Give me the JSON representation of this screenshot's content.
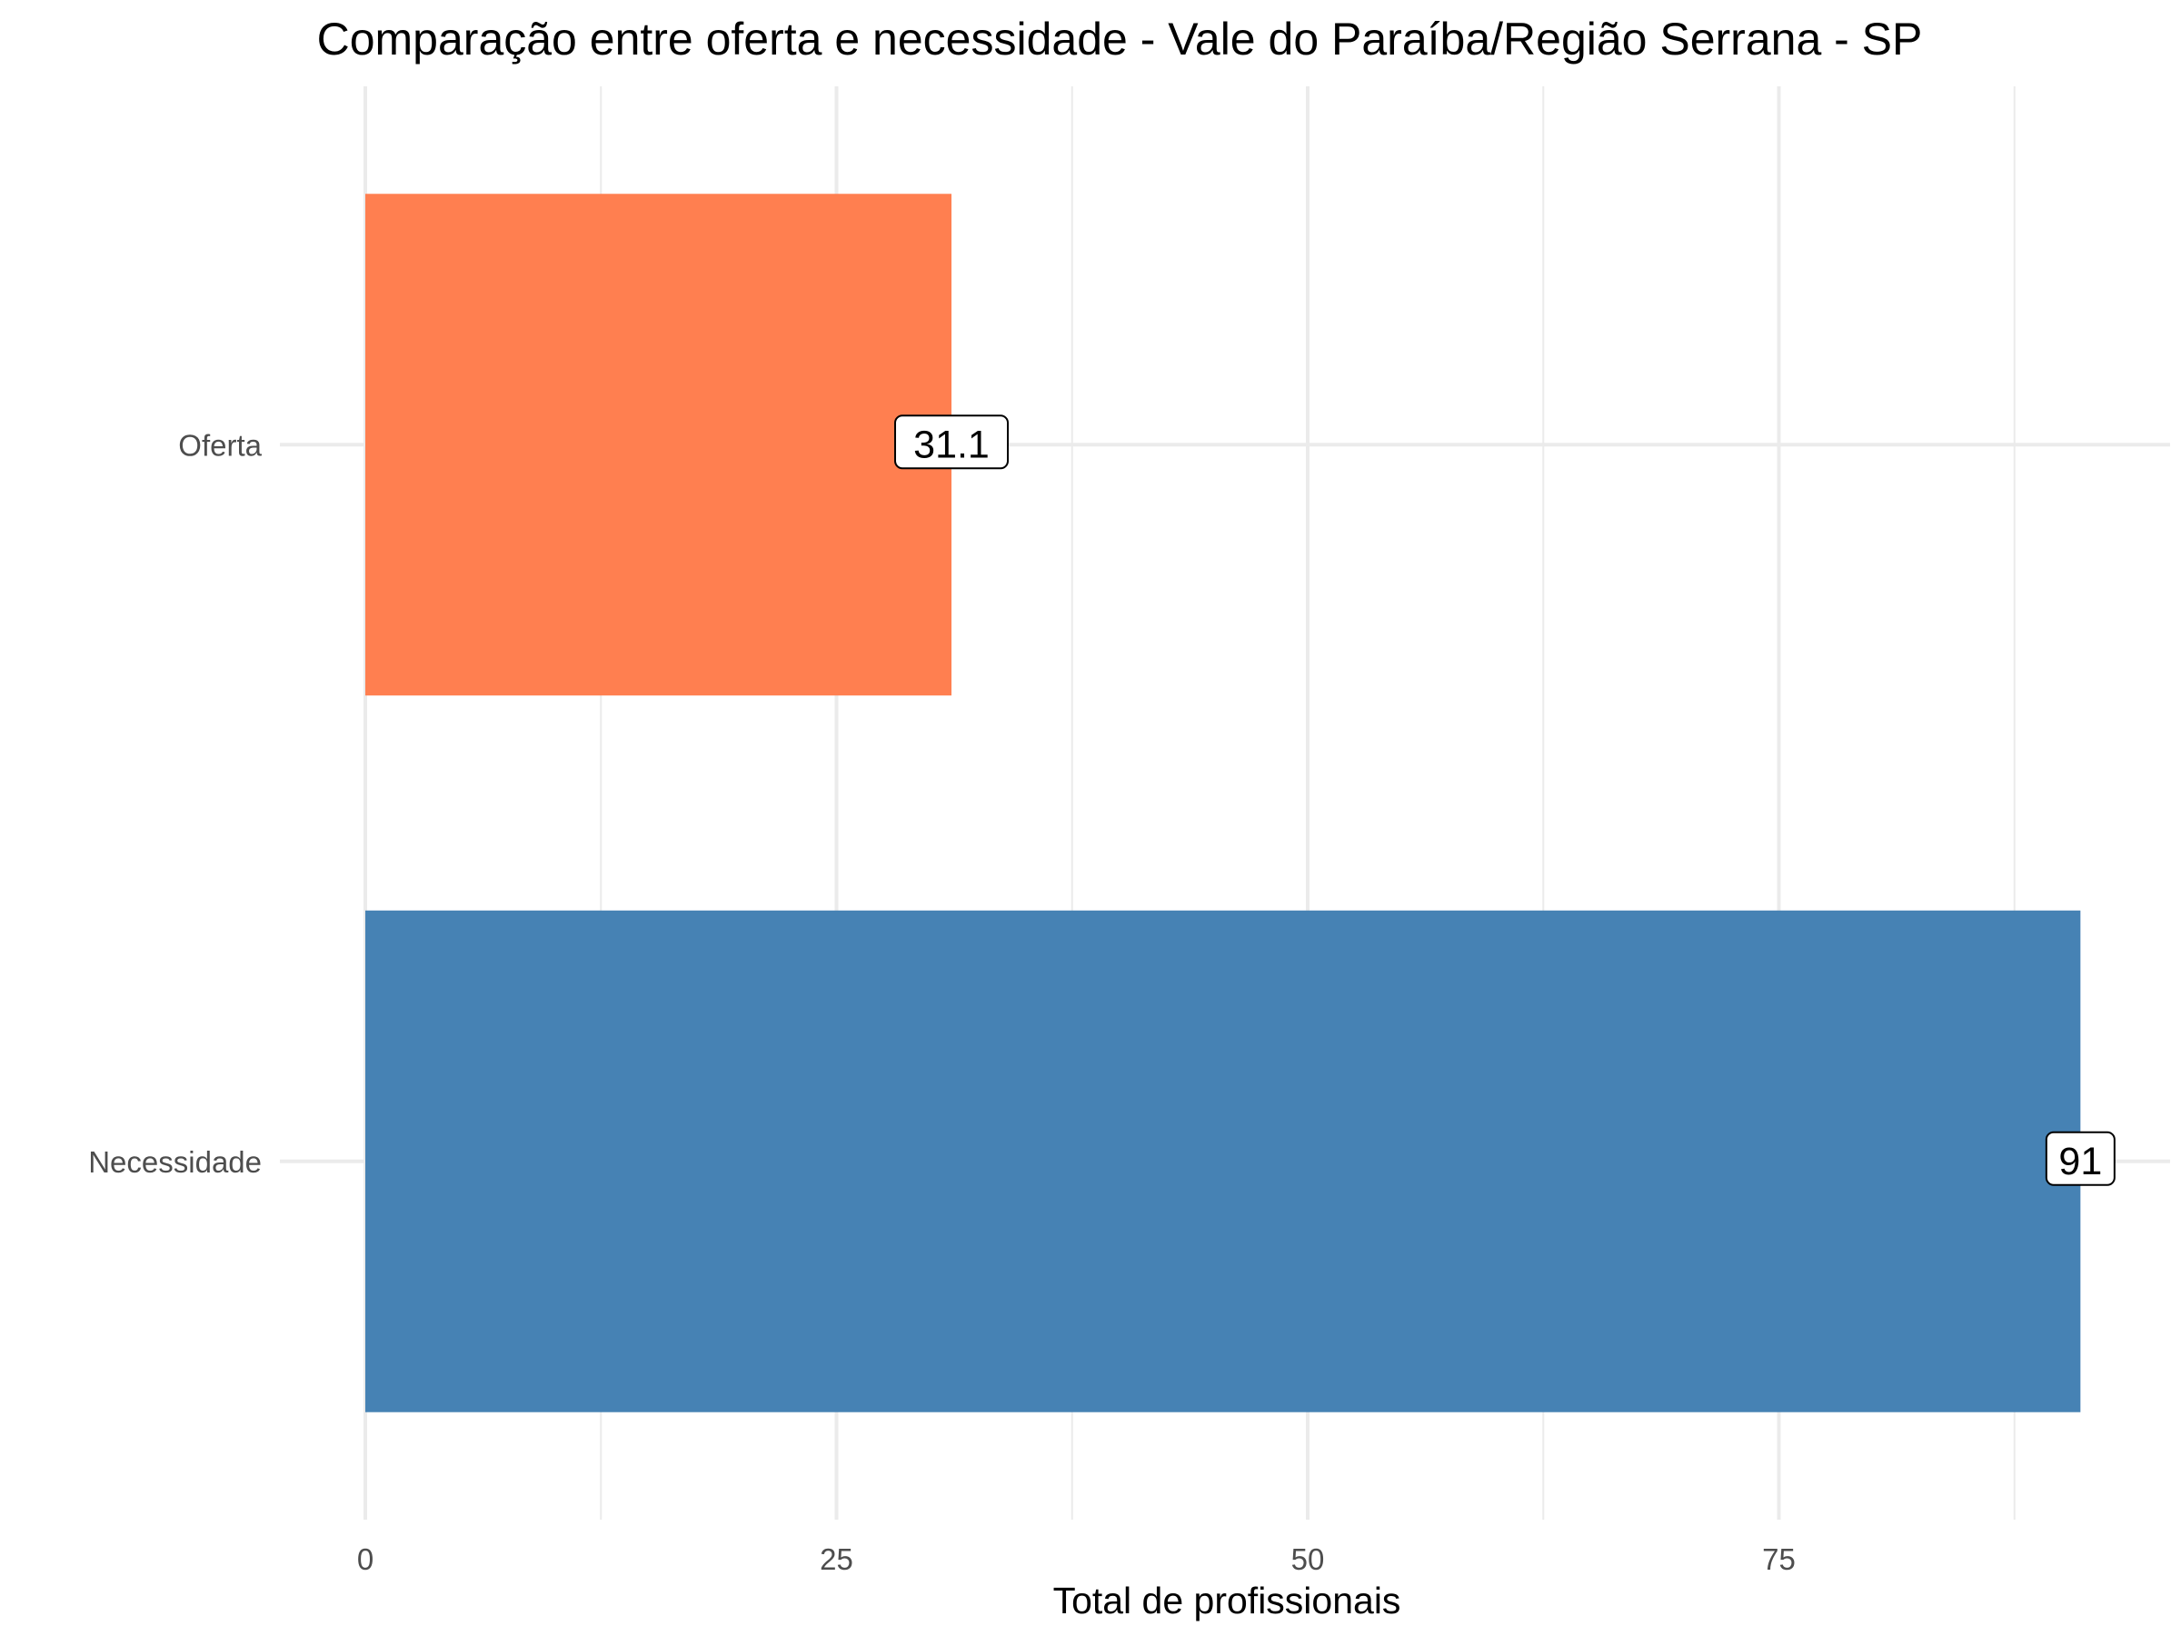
{
  "chart_data": {
    "type": "bar",
    "orientation": "horizontal",
    "title": "Comparação entre oferta e necessidade - Vale do Paraíba/Região Serrana - SP",
    "xlabel": "Total de profissionais",
    "ylabel": "",
    "categories": [
      "Oferta",
      "Necessidade"
    ],
    "values": [
      31.1,
      91
    ],
    "data_labels": [
      "31.1",
      "91"
    ],
    "colors": [
      "#FF7F50",
      "#4682B4"
    ],
    "xlim": [
      0,
      95
    ],
    "xticks": [
      0,
      25,
      50,
      75
    ],
    "xtick_labels": [
      "0",
      "25",
      "50",
      "75"
    ],
    "grid": true,
    "legend": "none"
  }
}
